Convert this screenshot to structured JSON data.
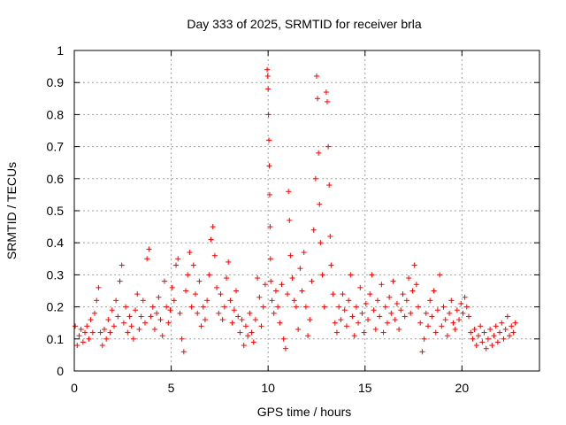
{
  "chart_data": {
    "type": "scatter",
    "title": "Day 333 of 2025, SRMTID for receiver brla",
    "xlabel": "GPS time / hours",
    "ylabel": "SRMTID / TECUs",
    "xlim": [
      0,
      24
    ],
    "ylim": [
      0,
      1
    ],
    "xticks": [
      0,
      5,
      10,
      15,
      20
    ],
    "xtick_labels": [
      "0",
      "5",
      "10",
      "15",
      "20"
    ],
    "yticks": [
      0,
      0.1,
      0.2,
      0.3,
      0.4,
      0.5,
      0.6,
      0.7,
      0.8,
      0.9,
      1
    ],
    "ytick_labels": [
      "0",
      "0.1",
      "0.2",
      "0.3",
      "0.4",
      "0.5",
      "0.6",
      "0.7",
      "0.8",
      "0.9",
      "1"
    ],
    "grid": true,
    "marker": "+",
    "marker_color": "#ff0000",
    "series": [
      {
        "name": "SRMTID",
        "points": [
          [
            0.05,
            0.14
          ],
          [
            0.15,
            0.08
          ],
          [
            0.25,
            0.11
          ],
          [
            0.35,
            0.13
          ],
          [
            0.45,
            0.09
          ],
          [
            0.55,
            0.12
          ],
          [
            0.65,
            0.14
          ],
          [
            0.75,
            0.1
          ],
          [
            0.85,
            0.16
          ],
          [
            0.95,
            0.12
          ],
          [
            1.05,
            0.18
          ],
          [
            1.15,
            0.22
          ],
          [
            1.25,
            0.26
          ],
          [
            1.35,
            0.12
          ],
          [
            1.45,
            0.08
          ],
          [
            1.55,
            0.13
          ],
          [
            1.65,
            0.1
          ],
          [
            1.75,
            0.16
          ],
          [
            1.85,
            0.12
          ],
          [
            1.95,
            0.19
          ],
          [
            2.05,
            0.14
          ],
          [
            2.15,
            0.22
          ],
          [
            2.25,
            0.17
          ],
          [
            2.35,
            0.28
          ],
          [
            2.45,
            0.33
          ],
          [
            2.55,
            0.15
          ],
          [
            2.65,
            0.2
          ],
          [
            2.75,
            0.12
          ],
          [
            2.85,
            0.17
          ],
          [
            2.95,
            0.14
          ],
          [
            3.05,
            0.1
          ],
          [
            3.15,
            0.19
          ],
          [
            3.25,
            0.24
          ],
          [
            3.35,
            0.13
          ],
          [
            3.45,
            0.17
          ],
          [
            3.55,
            0.22
          ],
          [
            3.65,
            0.15
          ],
          [
            3.75,
            0.35
          ],
          [
            3.85,
            0.38
          ],
          [
            3.95,
            0.17
          ],
          [
            4.05,
            0.2
          ],
          [
            4.15,
            0.13
          ],
          [
            4.25,
            0.18
          ],
          [
            4.35,
            0.23
          ],
          [
            4.45,
            0.16
          ],
          [
            4.55,
            0.11
          ],
          [
            4.65,
            0.28
          ],
          [
            4.75,
            0.2
          ],
          [
            4.85,
            0.15
          ],
          [
            4.95,
            0.19
          ],
          [
            5.05,
            0.26
          ],
          [
            5.15,
            0.22
          ],
          [
            5.25,
            0.33
          ],
          [
            5.35,
            0.35
          ],
          [
            5.45,
            0.18
          ],
          [
            5.55,
            0.1
          ],
          [
            5.65,
            0.06
          ],
          [
            5.75,
            0.25
          ],
          [
            5.85,
            0.3
          ],
          [
            5.95,
            0.37
          ],
          [
            6.05,
            0.2
          ],
          [
            6.15,
            0.33
          ],
          [
            6.25,
            0.24
          ],
          [
            6.35,
            0.18
          ],
          [
            6.45,
            0.28
          ],
          [
            6.55,
            0.14
          ],
          [
            6.65,
            0.2
          ],
          [
            6.75,
            0.16
          ],
          [
            6.85,
            0.22
          ],
          [
            6.95,
            0.3
          ],
          [
            7.05,
            0.41
          ],
          [
            7.15,
            0.45
          ],
          [
            7.25,
            0.36
          ],
          [
            7.35,
            0.26
          ],
          [
            7.45,
            0.18
          ],
          [
            7.55,
            0.24
          ],
          [
            7.65,
            0.16
          ],
          [
            7.75,
            0.2
          ],
          [
            7.85,
            0.29
          ],
          [
            7.95,
            0.34
          ],
          [
            8.05,
            0.22
          ],
          [
            8.15,
            0.15
          ],
          [
            8.25,
            0.19
          ],
          [
            8.35,
            0.25
          ],
          [
            8.45,
            0.17
          ],
          [
            8.55,
            0.12
          ],
          [
            8.65,
            0.16
          ],
          [
            8.75,
            0.08
          ],
          [
            8.85,
            0.14
          ],
          [
            8.95,
            0.11
          ],
          [
            9.05,
            0.18
          ],
          [
            9.15,
            0.12
          ],
          [
            9.25,
            0.09
          ],
          [
            9.35,
            0.16
          ],
          [
            9.45,
            0.29
          ],
          [
            9.55,
            0.23
          ],
          [
            9.65,
            0.14
          ],
          [
            9.75,
            0.2
          ],
          [
            9.85,
            0.27
          ],
          [
            9.95,
            0.94
          ],
          [
            9.98,
            0.92
          ],
          [
            10.0,
            0.88
          ],
          [
            10.02,
            0.8
          ],
          [
            10.04,
            0.72
          ],
          [
            10.06,
            0.64
          ],
          [
            10.08,
            0.55
          ],
          [
            10.1,
            0.45
          ],
          [
            10.12,
            0.35
          ],
          [
            10.14,
            0.28
          ],
          [
            10.2,
            0.22
          ],
          [
            10.3,
            0.18
          ],
          [
            10.4,
            0.25
          ],
          [
            10.5,
            0.2
          ],
          [
            10.6,
            0.15
          ],
          [
            10.7,
            0.27
          ],
          [
            10.8,
            0.1
          ],
          [
            10.9,
            0.07
          ],
          [
            11.0,
            0.24
          ],
          [
            11.05,
            0.56
          ],
          [
            11.1,
            0.47
          ],
          [
            11.15,
            0.36
          ],
          [
            11.25,
            0.29
          ],
          [
            11.35,
            0.22
          ],
          [
            11.45,
            0.2
          ],
          [
            11.55,
            0.13
          ],
          [
            11.65,
            0.32
          ],
          [
            11.75,
            0.25
          ],
          [
            11.85,
            0.37
          ],
          [
            11.95,
            0.2
          ],
          [
            12.05,
            0.11
          ],
          [
            12.15,
            0.16
          ],
          [
            12.25,
            0.28
          ],
          [
            12.35,
            0.44
          ],
          [
            12.45,
            0.6
          ],
          [
            12.5,
            0.92
          ],
          [
            12.55,
            0.85
          ],
          [
            12.6,
            0.68
          ],
          [
            12.65,
            0.52
          ],
          [
            12.7,
            0.4
          ],
          [
            12.8,
            0.3
          ],
          [
            12.9,
            0.2
          ],
          [
            13.0,
            0.87
          ],
          [
            13.05,
            0.84
          ],
          [
            13.1,
            0.7
          ],
          [
            13.15,
            0.58
          ],
          [
            13.2,
            0.42
          ],
          [
            13.25,
            0.33
          ],
          [
            13.35,
            0.24
          ],
          [
            13.45,
            0.15
          ],
          [
            13.55,
            0.12
          ],
          [
            13.65,
            0.2
          ],
          [
            13.75,
            0.16
          ],
          [
            13.85,
            0.24
          ],
          [
            13.95,
            0.19
          ],
          [
            14.05,
            0.14
          ],
          [
            14.15,
            0.22
          ],
          [
            14.25,
            0.3
          ],
          [
            14.35,
            0.17
          ],
          [
            14.45,
            0.11
          ],
          [
            14.55,
            0.2
          ],
          [
            14.65,
            0.15
          ],
          [
            14.75,
            0.26
          ],
          [
            14.85,
            0.18
          ],
          [
            14.95,
            0.12
          ],
          [
            15.05,
            0.21
          ],
          [
            15.15,
            0.16
          ],
          [
            15.25,
            0.24
          ],
          [
            15.35,
            0.3
          ],
          [
            15.45,
            0.19
          ],
          [
            15.55,
            0.13
          ],
          [
            15.65,
            0.22
          ],
          [
            15.75,
            0.17
          ],
          [
            15.85,
            0.27
          ],
          [
            15.95,
            0.12
          ],
          [
            16.05,
            0.2
          ],
          [
            16.15,
            0.15
          ],
          [
            16.25,
            0.23
          ],
          [
            16.35,
            0.18
          ],
          [
            16.45,
            0.28
          ],
          [
            16.55,
            0.16
          ],
          [
            16.65,
            0.21
          ],
          [
            16.75,
            0.13
          ],
          [
            16.85,
            0.19
          ],
          [
            16.95,
            0.24
          ],
          [
            17.05,
            0.17
          ],
          [
            17.15,
            0.22
          ],
          [
            17.25,
            0.29
          ],
          [
            17.35,
            0.18
          ],
          [
            17.45,
            0.25
          ],
          [
            17.55,
            0.33
          ],
          [
            17.65,
            0.27
          ],
          [
            17.75,
            0.2
          ],
          [
            17.85,
            0.15
          ],
          [
            17.95,
            0.06
          ],
          [
            18.05,
            0.1
          ],
          [
            18.15,
            0.18
          ],
          [
            18.25,
            0.14
          ],
          [
            18.35,
            0.22
          ],
          [
            18.45,
            0.17
          ],
          [
            18.55,
            0.25
          ],
          [
            18.65,
            0.12
          ],
          [
            18.75,
            0.19
          ],
          [
            18.85,
            0.3
          ],
          [
            18.95,
            0.14
          ],
          [
            19.05,
            0.2
          ],
          [
            19.15,
            0.16
          ],
          [
            19.25,
            0.11
          ],
          [
            19.35,
            0.18
          ],
          [
            19.45,
            0.22
          ],
          [
            19.55,
            0.15
          ],
          [
            19.65,
            0.13
          ],
          [
            19.75,
            0.19
          ],
          [
            19.85,
            0.16
          ],
          [
            19.95,
            0.21
          ],
          [
            20.05,
            0.18
          ],
          [
            20.15,
            0.23
          ],
          [
            20.25,
            0.2
          ],
          [
            20.35,
            0.17
          ],
          [
            20.45,
            0.12
          ],
          [
            20.55,
            0.1
          ],
          [
            20.65,
            0.13
          ],
          [
            20.75,
            0.08
          ],
          [
            20.85,
            0.11
          ],
          [
            20.95,
            0.14
          ],
          [
            21.05,
            0.09
          ],
          [
            21.15,
            0.12
          ],
          [
            21.25,
            0.07
          ],
          [
            21.35,
            0.1
          ],
          [
            21.45,
            0.13
          ],
          [
            21.55,
            0.08
          ],
          [
            21.65,
            0.11
          ],
          [
            21.75,
            0.14
          ],
          [
            21.85,
            0.09
          ],
          [
            21.95,
            0.12
          ],
          [
            22.05,
            0.15
          ],
          [
            22.15,
            0.1
          ],
          [
            22.25,
            0.13
          ],
          [
            22.35,
            0.17
          ],
          [
            22.45,
            0.11
          ],
          [
            22.55,
            0.14
          ],
          [
            22.65,
            0.12
          ],
          [
            22.75,
            0.15
          ]
        ]
      }
    ]
  }
}
